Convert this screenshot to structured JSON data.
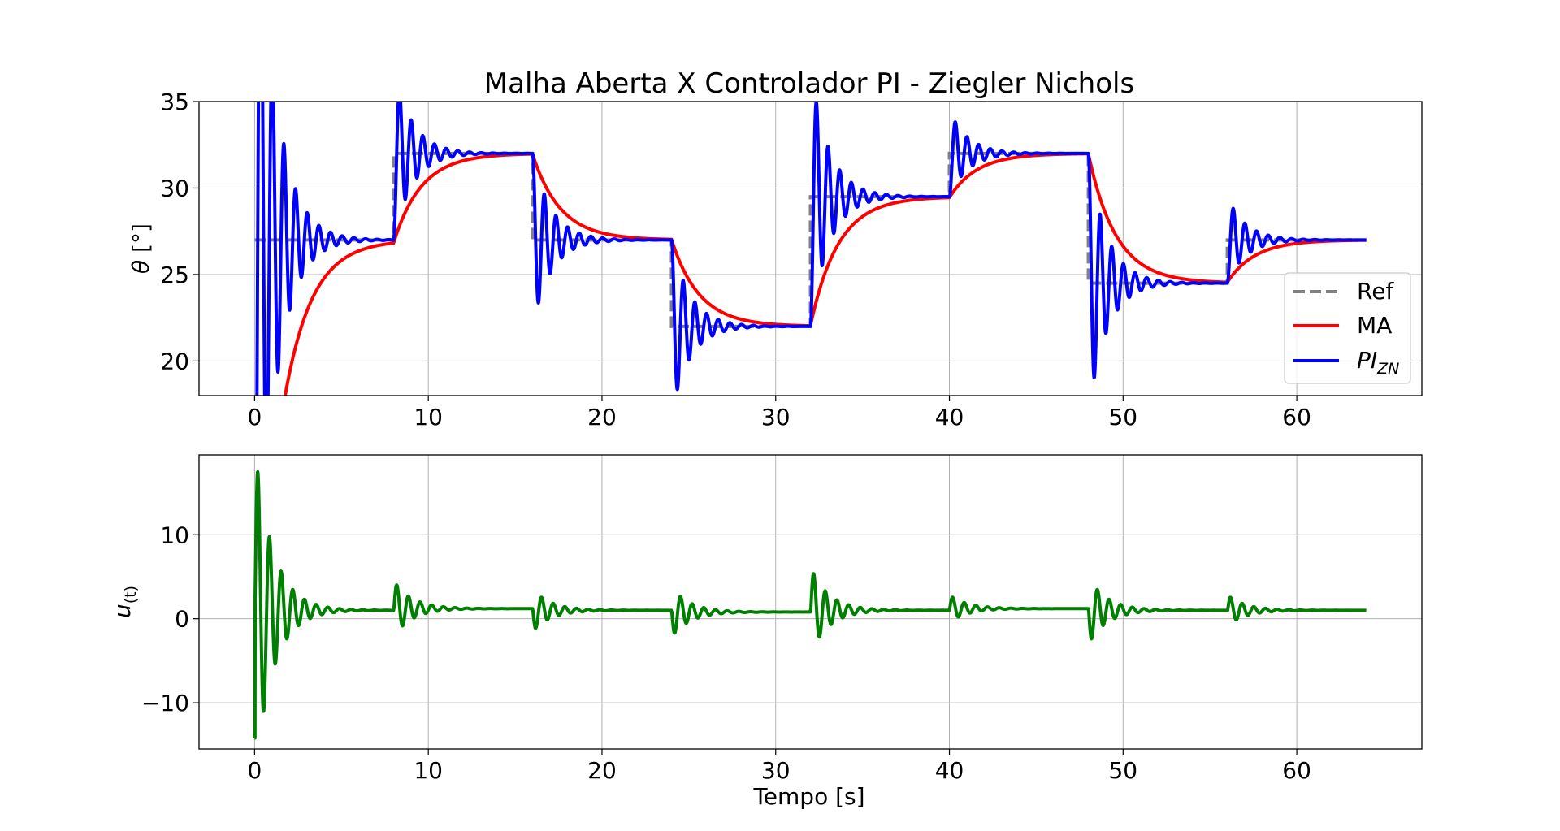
{
  "title": "Malha Aberta X Controlador PI - Ziegler Nichols",
  "chart_data": [
    {
      "type": "line",
      "ylabel": "θ [°]",
      "xlabel": "",
      "xlim": [
        -3.2,
        67.2
      ],
      "ylim": [
        18,
        35
      ],
      "xticks": [
        0,
        10,
        20,
        30,
        40,
        50,
        60
      ],
      "yticks": [
        20,
        25,
        30,
        35
      ],
      "grid": true,
      "legend": {
        "placement": "lower-right",
        "entries": [
          "Ref",
          "MA",
          "PI_ZN"
        ]
      },
      "reference_steps": {
        "segment_duration_s": 8,
        "start_value": 27,
        "values": [
          27,
          32,
          27,
          22,
          29.5,
          32,
          24.5,
          27
        ],
        "t_end": 64
      },
      "series": [
        {
          "name": "Ref",
          "kind": "ref",
          "color": "#808080",
          "dash": "dashed"
        },
        {
          "name": "MA",
          "kind": "open_loop",
          "color": "#ff0000",
          "initial_value": 0,
          "time_constant_s": 1.6
        },
        {
          "name": "PI_ZN",
          "kind": "pi_zn",
          "color": "#0000ff",
          "damping_ratio": 0.1,
          "natural_freq_rad_s": 9.4
        }
      ]
    },
    {
      "type": "line",
      "xlabel": "Tempo [s]",
      "ylabel": "u(t)",
      "xlim": [
        -3.2,
        67.2
      ],
      "ylim": [
        -15.5,
        19.5
      ],
      "xticks": [
        0,
        10,
        20,
        30,
        40,
        50,
        60
      ],
      "yticks": [
        -10,
        0,
        10
      ],
      "grid": true,
      "series": [
        {
          "name": "u(t)",
          "color": "#008000",
          "steady_values": [
            1.0,
            1.2,
            1.0,
            0.8,
            1.0,
            1.2,
            1.0,
            1.0
          ],
          "peak_values": [
            18,
            4.1,
            3.2,
            3.4,
            5.5,
            2.6,
            4.5,
            2.6
          ],
          "min_initial": -14.2,
          "damping_ratio": 0.1,
          "natural_freq_rad_s": 9.4
        }
      ]
    }
  ],
  "tick_labels_x": [
    "0",
    "10",
    "20",
    "30",
    "40",
    "50",
    "60"
  ],
  "tick_labels_y_top": [
    "20",
    "25",
    "30",
    "35"
  ],
  "tick_labels_y_bottom": [
    "−10",
    "0",
    "10"
  ],
  "legend_labels": {
    "ref": "Ref",
    "ma": "MA",
    "pi_main": "PI",
    "pi_sub": "ZN"
  },
  "ylabel_top": {
    "symbol": "θ",
    "unit": " [°]"
  },
  "ylabel_bottom": {
    "main": "u",
    "sub": "(t)"
  },
  "xlabel_bottom": "Tempo [s]"
}
